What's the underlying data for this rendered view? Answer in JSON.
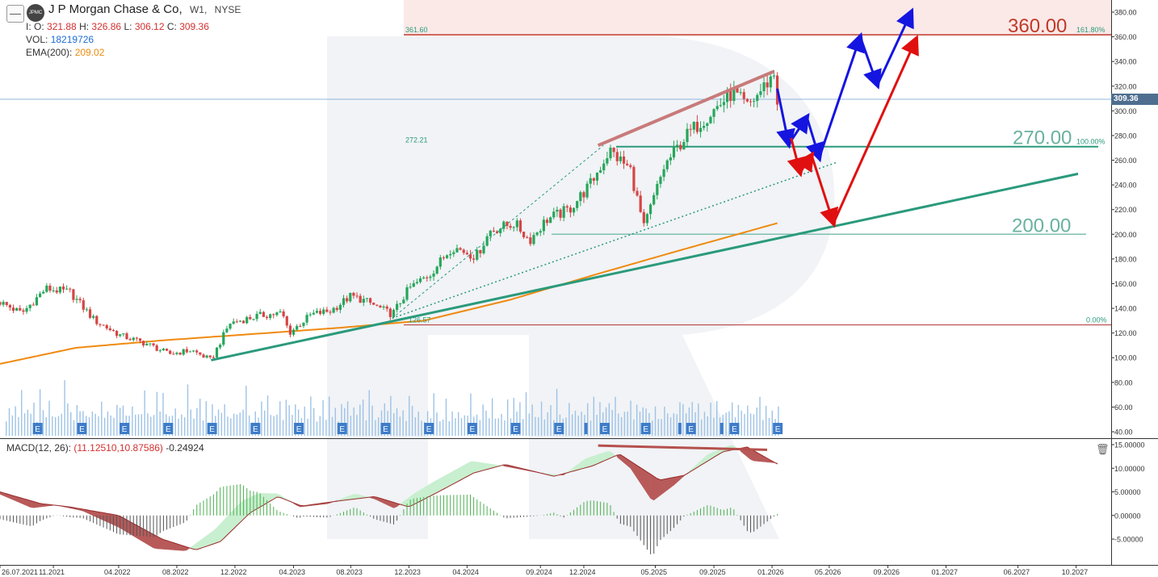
{
  "header": {
    "symbol": "J P Morgan Chase & Co,",
    "timeframe": "W1,",
    "exchange": "NYSE",
    "logo_text": "JPMC",
    "collapse_icon": "minus-icon",
    "ohlc": {
      "open_label": "I: O:",
      "open": "321.88",
      "high_label": "H:",
      "high": "326.86",
      "low_label": "L:",
      "low": "306.12",
      "close_label": "C:",
      "close": "309.36"
    },
    "vol_label": "VOL:",
    "vol": "18219726",
    "ema_label": "EMA(200):",
    "ema": "209.02"
  },
  "current_price_tag": "309.36",
  "macd_legend": {
    "label": "MACD(12, 26):",
    "values": "(11.12510,10.87586)",
    "hist": "-0.24924"
  },
  "colors": {
    "up": "#26a65b",
    "down": "#d64545",
    "ema": "#ef8a10",
    "trend": "#2a9a7c",
    "blue_arrow": "#1515e0",
    "red_arrow": "#e01010",
    "resistance": "#c0392b",
    "macd_green_fill": "#c8efcf",
    "macd_red_fill": "#b85a5a"
  },
  "chart_data": {
    "type": "candlestick",
    "title": "J P Morgan Chase & Co, W1, NYSE",
    "price_axis": {
      "range": [
        35,
        392
      ],
      "ticks": [
        "40.00",
        "60.00",
        "80.00",
        "100.00",
        "120.00",
        "140.00",
        "160.00",
        "180.00",
        "200.00",
        "220.00",
        "240.00",
        "260.00",
        "280.00",
        "300.00",
        "320.00",
        "340.00",
        "360.00",
        "380.00"
      ]
    },
    "macd_axis": {
      "range": [
        -8,
        16
      ],
      "ticks": [
        "15.00000",
        "10.00000",
        "5.00000",
        "0.00000",
        "-5.00000"
      ]
    },
    "time_axis": {
      "range": [
        "2021-07-26",
        "2027-11-30"
      ],
      "ticks": [
        "26.07.2021",
        "11.2021",
        "04.2022",
        "08.2022",
        "12.2022",
        "04.2023",
        "08.2023",
        "12.2023",
        "04.2024",
        "09.2024",
        "12.2024",
        "05.2025",
        "09.2025",
        "01.2026",
        "05.2026",
        "09.2026",
        "01.2027",
        "06.2027",
        "10.2027"
      ],
      "tick_dates": [
        "2021-07-26",
        "2021-11-15",
        "2022-04-01",
        "2022-08-01",
        "2022-12-01",
        "2023-04-03",
        "2023-08-01",
        "2023-12-01",
        "2024-04-01",
        "2024-09-02",
        "2024-12-02",
        "2025-05-01",
        "2025-09-01",
        "2026-01-01",
        "2026-05-01",
        "2026-09-01",
        "2027-01-01",
        "2027-06-01",
        "2027-10-01"
      ]
    },
    "price_keypoints": [
      [
        "2021-07-26",
        145
      ],
      [
        "2021-09-10",
        136
      ],
      [
        "2021-10-30",
        156
      ],
      [
        "2021-12-20",
        153
      ],
      [
        "2022-02-10",
        130
      ],
      [
        "2022-04-05",
        118
      ],
      [
        "2022-06-01",
        111
      ],
      [
        "2022-07-15",
        103
      ],
      [
        "2022-09-01",
        106
      ],
      [
        "2022-10-12",
        98
      ],
      [
        "2022-11-20",
        128
      ],
      [
        "2023-01-20",
        134
      ],
      [
        "2023-03-10",
        136
      ],
      [
        "2023-03-25",
        120
      ],
      [
        "2023-05-10",
        135
      ],
      [
        "2023-06-20",
        138
      ],
      [
        "2023-08-01",
        150
      ],
      [
        "2023-09-01",
        146
      ],
      [
        "2023-10-27",
        135
      ],
      [
        "2023-12-01",
        156
      ],
      [
        "2024-01-15",
        168
      ],
      [
        "2024-03-01",
        190
      ],
      [
        "2024-04-20",
        182
      ],
      [
        "2024-05-20",
        203
      ],
      [
        "2024-07-10",
        209
      ],
      [
        "2024-08-10",
        195
      ],
      [
        "2024-09-15",
        212
      ],
      [
        "2024-11-01",
        220
      ],
      [
        "2024-12-15",
        240
      ],
      [
        "2025-01-25",
        268
      ],
      [
        "2025-03-10",
        252
      ],
      [
        "2025-04-07",
        205
      ],
      [
        "2025-05-20",
        255
      ],
      [
        "2025-07-01",
        278
      ],
      [
        "2025-08-01",
        290
      ],
      [
        "2025-09-10",
        304
      ],
      [
        "2025-10-10",
        315
      ],
      [
        "2025-11-10",
        303
      ],
      [
        "2025-12-12",
        318
      ],
      [
        "2026-01-05",
        330
      ],
      [
        "2026-01-12",
        309
      ]
    ],
    "ema200_keypoints": [
      [
        "2021-07-26",
        95
      ],
      [
        "2022-01-01",
        108
      ],
      [
        "2022-07-01",
        114
      ],
      [
        "2023-01-01",
        119
      ],
      [
        "2023-07-01",
        124
      ],
      [
        "2024-01-01",
        130
      ],
      [
        "2024-07-01",
        147
      ],
      [
        "2025-01-01",
        168
      ],
      [
        "2025-07-01",
        188
      ],
      [
        "2026-01-12",
        209
      ]
    ],
    "macd_keypoints": [
      [
        "2021-07-26",
        4.5
      ],
      [
        "2021-10-01",
        1.6
      ],
      [
        "2021-11-20",
        2.2
      ],
      [
        "2022-01-15",
        1.0
      ],
      [
        "2022-04-01",
        -2.5
      ],
      [
        "2022-06-15",
        -7.0
      ],
      [
        "2022-08-20",
        -7.5
      ],
      [
        "2022-10-20",
        -3.0
      ],
      [
        "2022-12-15",
        3.0
      ],
      [
        "2023-01-20",
        4.7
      ],
      [
        "2023-03-01",
        4.6
      ],
      [
        "2023-04-15",
        1.8
      ],
      [
        "2023-06-15",
        2.5
      ],
      [
        "2023-08-10",
        4.6
      ],
      [
        "2023-09-20",
        3.5
      ],
      [
        "2023-11-01",
        1.5
      ],
      [
        "2023-12-10",
        4.5
      ],
      [
        "2024-01-20",
        7.0
      ],
      [
        "2024-04-10",
        11.5
      ],
      [
        "2024-06-15",
        10.5
      ],
      [
        "2024-09-01",
        9.0
      ],
      [
        "2024-10-20",
        8.5
      ],
      [
        "2024-12-05",
        12.0
      ],
      [
        "2025-01-25",
        13.7
      ],
      [
        "2025-03-10",
        10.0
      ],
      [
        "2025-04-25",
        3.0
      ],
      [
        "2025-06-10",
        6.5
      ],
      [
        "2025-08-20",
        13.0
      ],
      [
        "2025-10-10",
        15.0
      ],
      [
        "2025-11-20",
        11.6
      ],
      [
        "2026-01-12",
        11.1
      ]
    ],
    "signal_keypoints": [
      [
        "2021-07-26",
        5.0
      ],
      [
        "2021-10-20",
        2.5
      ],
      [
        "2021-12-20",
        1.8
      ],
      [
        "2022-04-01",
        0.0
      ],
      [
        "2022-07-01",
        -5.0
      ],
      [
        "2022-09-10",
        -7.3
      ],
      [
        "2022-11-01",
        -5.5
      ],
      [
        "2023-01-01",
        0.5
      ],
      [
        "2023-03-01",
        4.0
      ],
      [
        "2023-04-20",
        2.0
      ],
      [
        "2023-07-01",
        3.0
      ],
      [
        "2023-09-20",
        4.0
      ],
      [
        "2023-12-01",
        1.8
      ],
      [
        "2024-02-01",
        5.0
      ],
      [
        "2024-04-15",
        9.0
      ],
      [
        "2024-06-20",
        10.8
      ],
      [
        "2024-10-01",
        8.3
      ],
      [
        "2024-12-20",
        10.5
      ],
      [
        "2025-02-15",
        13.0
      ],
      [
        "2025-05-10",
        7.5
      ],
      [
        "2025-07-01",
        8.5
      ],
      [
        "2025-09-20",
        13.5
      ],
      [
        "2025-11-10",
        14.5
      ],
      [
        "2026-01-12",
        10.9
      ]
    ],
    "volume_relative": [
      0.25,
      0.4,
      0.3,
      0.55,
      0.35,
      0.7,
      0.3,
      0.45,
      0.35,
      0.6,
      0.3,
      0.85,
      0.4,
      0.3,
      0.5,
      0.35,
      0.3,
      0.4,
      0.25,
      0.95,
      0.45,
      0.3,
      0.35,
      0.5,
      0.3,
      0.55,
      0.25,
      0.4,
      0.3,
      0.5,
      0.35,
      0.6,
      0.3,
      0.45,
      0.3,
      0.4,
      0.5,
      0.35,
      0.7,
      0.4
    ],
    "annotations": {
      "resistance_price": 361.6,
      "resistance_label": "361.60",
      "level_360_label": "360.00",
      "fib_161_label": "161.80%",
      "level_272_price": 272.21,
      "level_272_label": "272.21",
      "level_270_label": "270.00",
      "fib_100_label": "100.00%",
      "level_200_label": "200.00",
      "level_126_price": 126.57,
      "level_126_label": "126.57",
      "fib_0_label": "0.00%"
    },
    "earnings_marker_label": "E",
    "earnings_dates": [
      "2021-10-13",
      "2022-01-14",
      "2022-04-13",
      "2022-07-14",
      "2022-10-14",
      "2023-01-13",
      "2023-04-14",
      "2023-07-14",
      "2023-10-13",
      "2024-01-12",
      "2024-04-12",
      "2024-07-12",
      "2024-10-11",
      "2025-01-15",
      "2025-04-11",
      "2025-07-15",
      "2025-10-14",
      "2026-01-13"
    ],
    "earnings_extra_i_dates": [
      "2021-07-26",
      "2024-12-20",
      "2025-07-05",
      "2025-10-01"
    ],
    "forecast": {
      "blue_path": [
        [
          "2026-01-12",
          318
        ],
        [
          "2026-02-05",
          273
        ],
        [
          "2026-03-15",
          295
        ],
        [
          "2026-04-10",
          262
        ],
        [
          "2026-07-05",
          360
        ],
        [
          "2026-08-10",
          321
        ],
        [
          "2026-10-20",
          380
        ]
      ],
      "red_path": [
        [
          "2026-02-10",
          278
        ],
        [
          "2026-03-01",
          250
        ],
        [
          "2026-03-25",
          264
        ],
        [
          "2026-05-10",
          209
        ],
        [
          "2026-10-30",
          358
        ]
      ]
    }
  }
}
